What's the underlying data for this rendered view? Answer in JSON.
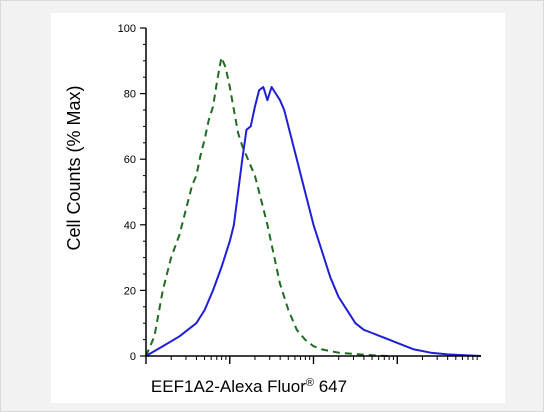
{
  "chart_data": {
    "type": "line",
    "xlabel": "EEF1A2-Alexa Fluor",
    "xlabel_superscript": "®",
    "xlabel_suffix": " 647",
    "ylabel": "Cell Counts (% Max)",
    "ylim": [
      0,
      100
    ],
    "y_ticks": [
      "0",
      "20",
      "40",
      "60",
      "80",
      "100"
    ],
    "x_scale": "log",
    "xlim": [
      -1,
      3
    ],
    "x_labeled_ticks": false,
    "grid": false,
    "series": [
      {
        "style": "dashed",
        "color": "#1f6b1f",
        "x": [
          -1.0,
          -0.9,
          -0.8,
          -0.7,
          -0.6,
          -0.5,
          -0.45,
          -0.4,
          -0.35,
          -0.3,
          -0.25,
          -0.2,
          -0.15,
          -0.1,
          -0.05,
          0.0,
          0.05,
          0.1,
          0.15,
          0.2,
          0.25,
          0.3,
          0.35,
          0.4,
          0.45,
          0.5,
          0.55,
          0.6,
          0.7,
          0.8,
          0.9,
          1.0,
          1.1,
          1.2,
          1.3,
          1.4,
          1.5,
          1.6,
          1.7,
          1.8,
          1.9
        ],
        "y": [
          0,
          6,
          20,
          30,
          37,
          47,
          52,
          55,
          61,
          66,
          72,
          76,
          84,
          91,
          88,
          82,
          75,
          68,
          64,
          61,
          58,
          55,
          50,
          45,
          40,
          34,
          28,
          22,
          14,
          8,
          5,
          3,
          2,
          1.5,
          1,
          0.8,
          0.6,
          0.4,
          0.2,
          0.1,
          0
        ]
      },
      {
        "style": "solid",
        "color": "#1f1fd6",
        "x": [
          -1.0,
          -0.8,
          -0.6,
          -0.4,
          -0.3,
          -0.2,
          -0.1,
          0.0,
          0.05,
          0.1,
          0.15,
          0.2,
          0.25,
          0.3,
          0.35,
          0.4,
          0.45,
          0.5,
          0.55,
          0.6,
          0.65,
          0.7,
          0.8,
          0.9,
          1.0,
          1.1,
          1.2,
          1.3,
          1.4,
          1.5,
          1.6,
          1.7,
          1.8,
          1.9,
          2.0,
          2.1,
          2.2,
          2.4,
          2.6,
          2.8,
          3.0
        ],
        "y": [
          0,
          3,
          6,
          10,
          14,
          20,
          27,
          35,
          40,
          50,
          60,
          69,
          70,
          76,
          81,
          82,
          78,
          82,
          80,
          78,
          75,
          70,
          60,
          50,
          40,
          32,
          24,
          18,
          14,
          10,
          8,
          7,
          6,
          5,
          4,
          3,
          2,
          1,
          0.5,
          0.2,
          0
        ]
      }
    ]
  }
}
